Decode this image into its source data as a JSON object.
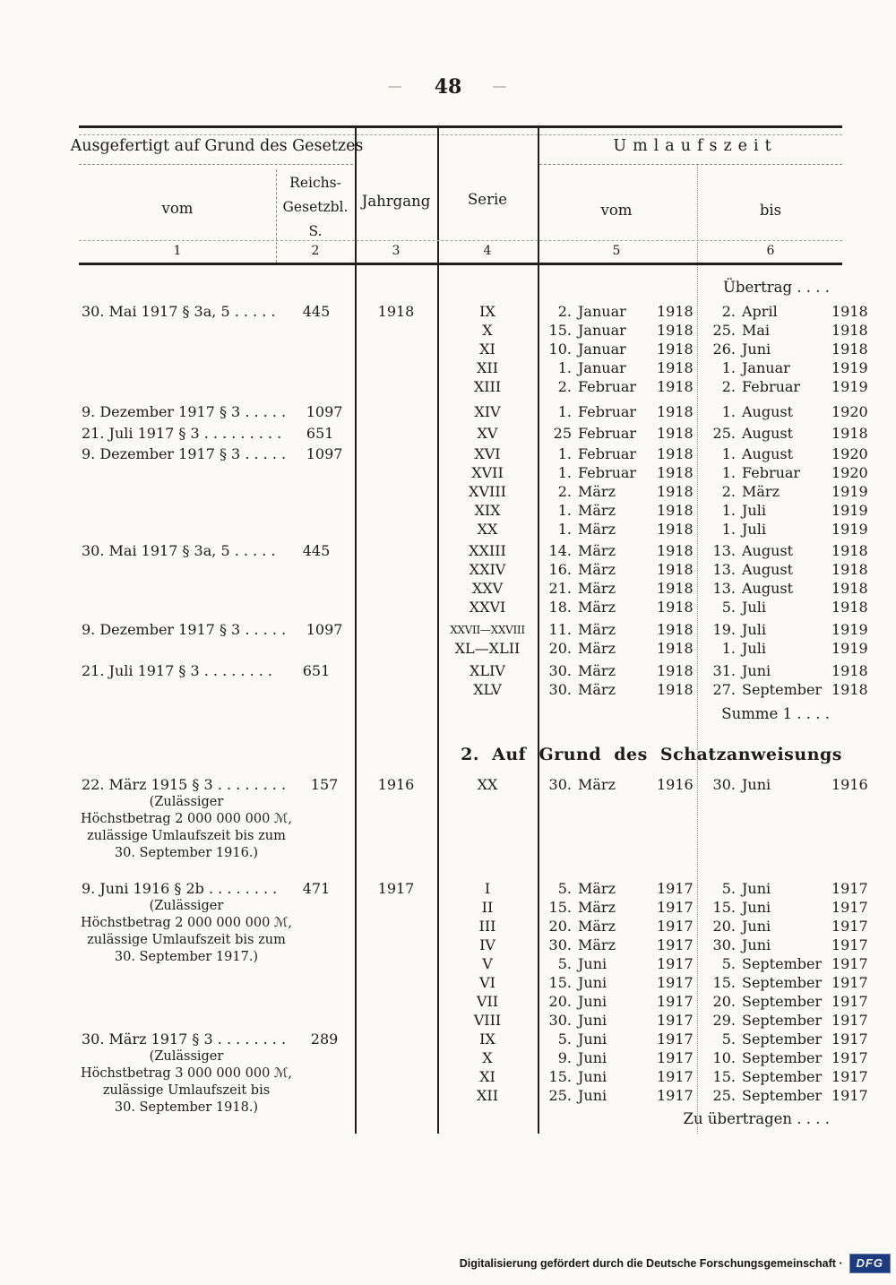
{
  "page": {
    "left_dash": "—",
    "number": "48",
    "right_dash": "—"
  },
  "table_header": {
    "group1": "Ausgefertigt auf Grund des Gesetzes",
    "group2": "Umlaufszeit",
    "col1": "vom",
    "col2_lines": [
      "Reichs-",
      "Gesetzbl.",
      "S."
    ],
    "col3": "Jahrgang",
    "col4": "Serie",
    "col5": "vom",
    "col6": "bis",
    "numbers": [
      "1",
      "2",
      "3",
      "4",
      "5",
      "6"
    ]
  },
  "blocks": [
    {
      "type": "carry",
      "name": "uebertrag-line",
      "text": "Übertrag . . . ."
    },
    {
      "type": "entry",
      "law": "30. Mai 1917 § 3a, 5 . . . . .",
      "page": "445",
      "jahrgang": "1918",
      "rows": [
        {
          "serie": "IX",
          "vom": [
            "2.",
            "Januar",
            "1918"
          ],
          "bis": [
            "2.",
            "April",
            "1918"
          ]
        },
        {
          "serie": "X",
          "vom": [
            "15.",
            "Januar",
            "1918"
          ],
          "bis": [
            "25.",
            "Mai",
            "1918"
          ]
        },
        {
          "serie": "XI",
          "vom": [
            "10.",
            "Januar",
            "1918"
          ],
          "bis": [
            "26.",
            "Juni",
            "1918"
          ]
        },
        {
          "serie": "XII",
          "vom": [
            "1.",
            "Januar",
            "1918"
          ],
          "bis": [
            "1.",
            "Januar",
            "1919"
          ]
        },
        {
          "serie": "XIII",
          "vom": [
            "2.",
            "Februar",
            "1918"
          ],
          "bis": [
            "2.",
            "Februar",
            "1919"
          ]
        }
      ]
    },
    {
      "type": "entry",
      "law": "9. Dezember 1917 § 3 . . . . .",
      "page": "1097",
      "jahrgang": "",
      "rows": [
        {
          "serie": "XIV",
          "vom": [
            "1.",
            "Februar",
            "1918"
          ],
          "bis": [
            "1.",
            "August",
            "1920"
          ]
        }
      ]
    },
    {
      "type": "entry",
      "law": "21. Juli 1917 § 3 . . . . . . . . .",
      "page": "651",
      "jahrgang": "",
      "rows": [
        {
          "serie": "XV",
          "vom": [
            "25",
            "Februar",
            "1918"
          ],
          "bis": [
            "25.",
            "August",
            "1918"
          ]
        }
      ]
    },
    {
      "type": "entry",
      "law": "9. Dezember 1917 § 3 . . . . .",
      "page": "1097",
      "jahrgang": "",
      "rows": [
        {
          "serie": "XVI",
          "vom": [
            "1.",
            "Februar",
            "1918"
          ],
          "bis": [
            "1.",
            "August",
            "1920"
          ]
        },
        {
          "serie": "XVII",
          "vom": [
            "1.",
            "Februar",
            "1918"
          ],
          "bis": [
            "1.",
            "Februar",
            "1920"
          ]
        },
        {
          "serie": "XVIII",
          "vom": [
            "2.",
            "März",
            "1918"
          ],
          "bis": [
            "2.",
            "März",
            "1919"
          ]
        },
        {
          "serie": "XIX",
          "vom": [
            "1.",
            "März",
            "1918"
          ],
          "bis": [
            "1.",
            "Juli",
            "1919"
          ]
        },
        {
          "serie": "XX",
          "vom": [
            "1.",
            "März",
            "1918"
          ],
          "bis": [
            "1.",
            "Juli",
            "1919"
          ]
        }
      ]
    },
    {
      "type": "entry",
      "law": "30. Mai 1917 § 3a, 5 . . . . .",
      "page": "445",
      "jahrgang": "",
      "rows": [
        {
          "serie": "XXIII",
          "vom": [
            "14.",
            "März",
            "1918"
          ],
          "bis": [
            "13.",
            "August",
            "1918"
          ]
        },
        {
          "serie": "XXIV",
          "vom": [
            "16.",
            "März",
            "1918"
          ],
          "bis": [
            "13.",
            "August",
            "1918"
          ]
        },
        {
          "serie": "XXV",
          "vom": [
            "21.",
            "März",
            "1918"
          ],
          "bis": [
            "13.",
            "August",
            "1918"
          ]
        },
        {
          "serie": "XXVI",
          "vom": [
            "18.",
            "März",
            "1918"
          ],
          "bis": [
            "5.",
            "Juli",
            "1918"
          ]
        }
      ]
    },
    {
      "type": "entry",
      "law": "9. Dezember 1917 § 3 . . . . .",
      "page": "1097",
      "jahrgang": "",
      "rows": [
        {
          "serie": "XXVII—XXVIII",
          "vom": [
            "11.",
            "März",
            "1918"
          ],
          "bis": [
            "19.",
            "Juli",
            "1919"
          ]
        },
        {
          "serie": "XL—XLII",
          "vom": [
            "20.",
            "März",
            "1918"
          ],
          "bis": [
            "1.",
            "Juli",
            "1919"
          ]
        }
      ]
    },
    {
      "type": "entry",
      "law": "21. Juli 1917 § 3 . . . . .  . . .",
      "page": "651",
      "jahrgang": "",
      "rows": [
        {
          "serie": "XLIV",
          "vom": [
            "30.",
            "März",
            "1918"
          ],
          "bis": [
            "31.",
            "Juni",
            "1918"
          ]
        },
        {
          "serie": "XLV",
          "vom": [
            "30.",
            "März",
            "1918"
          ],
          "bis": [
            "27.",
            "September",
            "1918"
          ]
        }
      ]
    },
    {
      "type": "carry",
      "name": "summe-line",
      "text": "Summe 1 . . . ."
    },
    {
      "type": "section",
      "name": "section-2-heading",
      "text": "2. Auf Grund des Schatzanweisungs"
    },
    {
      "type": "entry",
      "law": "22. März 1915 § 3 . . . . . . . .",
      "page": "157",
      "jahrgang": "1916",
      "note": [
        "(Zulässiger",
        "Höchstbetrag 2 000 000 000 ℳ,",
        "zulässige Umlaufszeit bis zum",
        "30. September 1916.)"
      ],
      "rows": [
        {
          "serie": "XX",
          "vom": [
            "30.",
            "März",
            "1916"
          ],
          "bis": [
            "30.",
            "Juni",
            "1916"
          ]
        }
      ]
    },
    {
      "type": "entry",
      "law": "9. Juni 1916 § 2b . . . . . . . .",
      "page": "471",
      "jahrgang": "1917",
      "note": [
        "(Zulässiger",
        "Höchstbetrag 2 000 000 000 ℳ,",
        "zulässige Umlaufszeit bis zum",
        "30. September 1917.)"
      ],
      "rows": [
        {
          "serie": "I",
          "vom": [
            "5.",
            "März",
            "1917"
          ],
          "bis": [
            "5.",
            "Juni",
            "1917"
          ]
        },
        {
          "serie": "II",
          "vom": [
            "15.",
            "März",
            "1917"
          ],
          "bis": [
            "15.",
            "Juni",
            "1917"
          ]
        },
        {
          "serie": "III",
          "vom": [
            "20.",
            "März",
            "1917"
          ],
          "bis": [
            "20.",
            "Juni",
            "1917"
          ]
        },
        {
          "serie": "IV",
          "vom": [
            "30.",
            "März",
            "1917"
          ],
          "bis": [
            "30.",
            "Juni",
            "1917"
          ]
        },
        {
          "serie": "V",
          "vom": [
            "5.",
            "Juni",
            "1917"
          ],
          "bis": [
            "5.",
            "September",
            "1917"
          ]
        },
        {
          "serie": "VI",
          "vom": [
            "15.",
            "Juni",
            "1917"
          ],
          "bis": [
            "15.",
            "September",
            "1917"
          ]
        },
        {
          "serie": "VII",
          "vom": [
            "20.",
            "Juni",
            "1917"
          ],
          "bis": [
            "20.",
            "September",
            "1917"
          ]
        },
        {
          "serie": "VIII",
          "vom": [
            "30.",
            "Juni",
            "1917"
          ],
          "bis": [
            "29.",
            "September",
            "1917"
          ]
        }
      ]
    },
    {
      "type": "entry",
      "law": "30. März 1917 § 3 . . . . . . . .",
      "page": "289",
      "jahrgang": "",
      "note": [
        "(Zulässiger",
        "Höchstbetrag 3 000 000 000 ℳ,",
        "zulässige Umlaufszeit bis",
        "30. September 1918.)"
      ],
      "rows": [
        {
          "serie": "IX",
          "vom": [
            "5.",
            "Juni",
            "1917"
          ],
          "bis": [
            "5.",
            "September",
            "1917"
          ]
        },
        {
          "serie": "X",
          "vom": [
            "9.",
            "Juni",
            "1917"
          ],
          "bis": [
            "10.",
            "September",
            "1917"
          ]
        },
        {
          "serie": "XI",
          "vom": [
            "15.",
            "Juni",
            "1917"
          ],
          "bis": [
            "15.",
            "September",
            "1917"
          ]
        },
        {
          "serie": "XII",
          "vom": [
            "25.",
            "Juni",
            "1917"
          ],
          "bis": [
            "25.",
            "September",
            "1917"
          ]
        }
      ]
    },
    {
      "type": "carry",
      "name": "zu-uebertragen-line",
      "text": "Zu übertragen . . . ."
    }
  ],
  "footer": {
    "credit": "Digitalisierung gefördert durch die Deutsche Forschungsgemeinschaft ·",
    "logo": "DFG",
    "logo_color": "#1c3b7e"
  }
}
